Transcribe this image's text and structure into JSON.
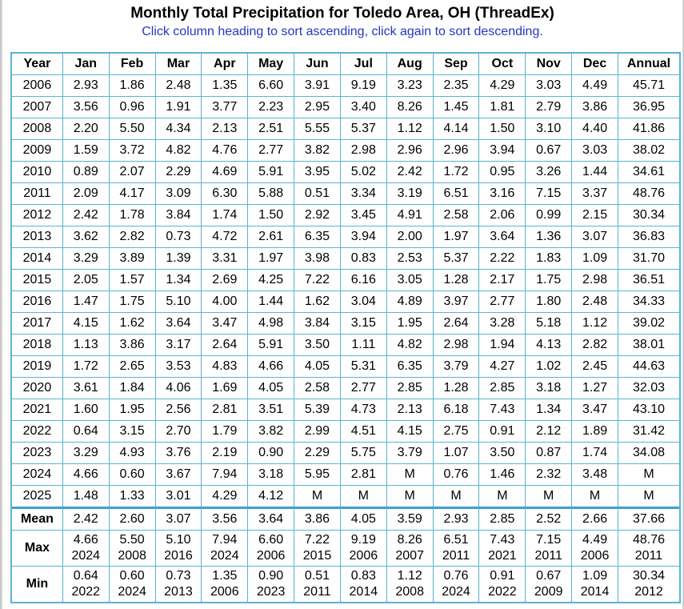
{
  "page": {
    "title": "Monthly Total Precipitation for Toledo Area, OH (ThreadEx)",
    "subtitle": "Click column heading to sort ascending, click again to sort descending."
  },
  "table": {
    "headers": [
      "Year",
      "Jan",
      "Feb",
      "Mar",
      "Apr",
      "May",
      "Jun",
      "Jul",
      "Aug",
      "Sep",
      "Oct",
      "Nov",
      "Dec",
      "Annual"
    ],
    "rows": [
      [
        "2006",
        "2.93",
        "1.86",
        "2.48",
        "1.35",
        "6.60",
        "3.91",
        "9.19",
        "3.23",
        "2.35",
        "4.29",
        "3.03",
        "4.49",
        "45.71"
      ],
      [
        "2007",
        "3.56",
        "0.96",
        "1.91",
        "3.77",
        "2.23",
        "2.95",
        "3.40",
        "8.26",
        "1.45",
        "1.81",
        "2.79",
        "3.86",
        "36.95"
      ],
      [
        "2008",
        "2.20",
        "5.50",
        "4.34",
        "2.13",
        "2.51",
        "5.55",
        "5.37",
        "1.12",
        "4.14",
        "1.50",
        "3.10",
        "4.40",
        "41.86"
      ],
      [
        "2009",
        "1.59",
        "3.72",
        "4.82",
        "4.76",
        "2.77",
        "3.82",
        "2.98",
        "2.96",
        "2.96",
        "3.94",
        "0.67",
        "3.03",
        "38.02"
      ],
      [
        "2010",
        "0.89",
        "2.07",
        "2.29",
        "4.69",
        "5.91",
        "3.95",
        "5.02",
        "2.42",
        "1.72",
        "0.95",
        "3.26",
        "1.44",
        "34.61"
      ],
      [
        "2011",
        "2.09",
        "4.17",
        "3.09",
        "6.30",
        "5.88",
        "0.51",
        "3.34",
        "3.19",
        "6.51",
        "3.16",
        "7.15",
        "3.37",
        "48.76"
      ],
      [
        "2012",
        "2.42",
        "1.78",
        "3.84",
        "1.74",
        "1.50",
        "2.92",
        "3.45",
        "4.91",
        "2.58",
        "2.06",
        "0.99",
        "2.15",
        "30.34"
      ],
      [
        "2013",
        "3.62",
        "2.82",
        "0.73",
        "4.72",
        "2.61",
        "6.35",
        "3.94",
        "2.00",
        "1.97",
        "3.64",
        "1.36",
        "3.07",
        "36.83"
      ],
      [
        "2014",
        "3.29",
        "3.89",
        "1.39",
        "3.31",
        "1.97",
        "3.98",
        "0.83",
        "2.53",
        "5.37",
        "2.22",
        "1.83",
        "1.09",
        "31.70"
      ],
      [
        "2015",
        "2.05",
        "1.57",
        "1.34",
        "2.69",
        "4.25",
        "7.22",
        "6.16",
        "3.05",
        "1.28",
        "2.17",
        "1.75",
        "2.98",
        "36.51"
      ],
      [
        "2016",
        "1.47",
        "1.75",
        "5.10",
        "4.00",
        "1.44",
        "1.62",
        "3.04",
        "4.89",
        "3.97",
        "2.77",
        "1.80",
        "2.48",
        "34.33"
      ],
      [
        "2017",
        "4.15",
        "1.62",
        "3.64",
        "3.47",
        "4.98",
        "3.84",
        "3.15",
        "1.95",
        "2.64",
        "3.28",
        "5.18",
        "1.12",
        "39.02"
      ],
      [
        "2018",
        "1.13",
        "3.86",
        "3.17",
        "2.64",
        "5.91",
        "3.50",
        "1.11",
        "4.82",
        "2.98",
        "1.94",
        "4.13",
        "2.82",
        "38.01"
      ],
      [
        "2019",
        "1.72",
        "2.65",
        "3.53",
        "4.83",
        "4.66",
        "4.05",
        "5.31",
        "6.35",
        "3.79",
        "4.27",
        "1.02",
        "2.45",
        "44.63"
      ],
      [
        "2020",
        "3.61",
        "1.84",
        "4.06",
        "1.69",
        "4.05",
        "2.58",
        "2.77",
        "2.85",
        "1.28",
        "2.85",
        "3.18",
        "1.27",
        "32.03"
      ],
      [
        "2021",
        "1.60",
        "1.95",
        "2.56",
        "2.81",
        "3.51",
        "5.39",
        "4.73",
        "2.13",
        "6.18",
        "7.43",
        "1.34",
        "3.47",
        "43.10"
      ],
      [
        "2022",
        "0.64",
        "3.15",
        "2.70",
        "1.79",
        "3.82",
        "2.99",
        "4.51",
        "4.15",
        "2.75",
        "0.91",
        "2.12",
        "1.89",
        "31.42"
      ],
      [
        "2023",
        "3.29",
        "4.93",
        "3.76",
        "2.19",
        "0.90",
        "2.29",
        "5.75",
        "3.79",
        "1.07",
        "3.50",
        "0.87",
        "1.74",
        "34.08"
      ],
      [
        "2024",
        "4.66",
        "0.60",
        "3.67",
        "7.94",
        "3.18",
        "5.95",
        "2.81",
        "M",
        "0.76",
        "1.46",
        "2.32",
        "3.48",
        "M"
      ],
      [
        "2025",
        "1.48",
        "1.33",
        "3.01",
        "4.29",
        "4.12",
        "M",
        "M",
        "M",
        "M",
        "M",
        "M",
        "M",
        "M"
      ]
    ],
    "mean": {
      "label": "Mean",
      "values": [
        "2.42",
        "2.60",
        "3.07",
        "3.56",
        "3.64",
        "3.86",
        "4.05",
        "3.59",
        "2.93",
        "2.85",
        "2.52",
        "2.66",
        "37.66"
      ]
    },
    "max": {
      "label": "Max",
      "values": [
        "4.66",
        "5.50",
        "5.10",
        "7.94",
        "6.60",
        "7.22",
        "9.19",
        "8.26",
        "6.51",
        "7.43",
        "7.15",
        "4.49",
        "48.76"
      ],
      "years": [
        "2024",
        "2008",
        "2016",
        "2024",
        "2006",
        "2015",
        "2006",
        "2007",
        "2011",
        "2021",
        "2011",
        "2006",
        "2011"
      ]
    },
    "min": {
      "label": "Min",
      "values": [
        "0.64",
        "0.60",
        "0.73",
        "1.35",
        "0.90",
        "0.51",
        "0.83",
        "1.12",
        "0.76",
        "0.91",
        "0.67",
        "1.09",
        "30.34"
      ],
      "years": [
        "2022",
        "2024",
        "2013",
        "2006",
        "2023",
        "2011",
        "2014",
        "2008",
        "2024",
        "2022",
        "2009",
        "2014",
        "2012"
      ]
    }
  },
  "colors": {
    "border": "#5ab3d6",
    "separator": "#3e9fd0",
    "subtitle": "#2437c0",
    "background": "#c9c9c9"
  }
}
